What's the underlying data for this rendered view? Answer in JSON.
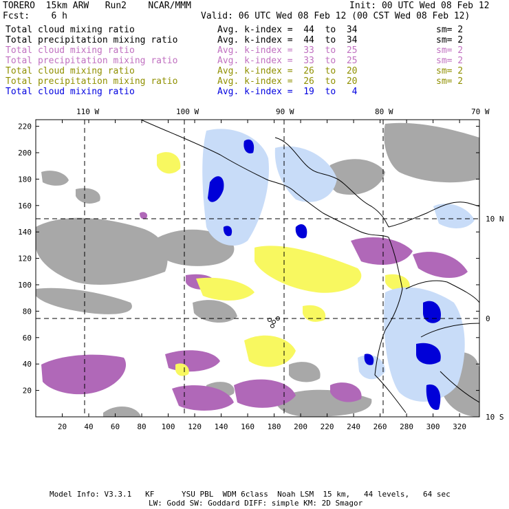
{
  "header": {
    "model": "TORERO  15km ARW   Run2    NCAR/MMM",
    "init": "Init: 00 UTC Wed 08 Feb 12",
    "fcst": "Fcst:    6 h",
    "valid": "Valid: 06 UTC Wed 08 Feb 12 (00 CST Wed 08 Feb 12)"
  },
  "legend": [
    {
      "field": "Total cloud mixing ratio",
      "range": "Avg. k-index =  44  to  34",
      "sm": "sm= 2",
      "color": "#000000"
    },
    {
      "field": "Total precipitation mixing ratio",
      "range": "Avg. k-index =  44  to  34",
      "sm": "sm= 2",
      "color": "#000000"
    },
    {
      "field": "Total cloud mixing ratio",
      "range": "Avg. k-index =  33  to  25",
      "sm": "sm= 2",
      "color": "#c070c0"
    },
    {
      "field": "Total precipitation mixing ratio",
      "range": "Avg. k-index =  33  to  25",
      "sm": "sm= 2",
      "color": "#c070c0"
    },
    {
      "field": "Total cloud mixing ratio",
      "range": "Avg. k-index =  26  to  20",
      "sm": "sm= 2",
      "color": "#909000"
    },
    {
      "field": "Total precipitation mixing ratio",
      "range": "Avg. k-index =  26  to  20",
      "sm": "sm= 2",
      "color": "#909000"
    },
    {
      "field": "Total cloud mixing ratio",
      "range": "Avg. k-index =  19  to   4",
      "sm": "",
      "color": "#0000e0"
    }
  ],
  "map": {
    "lon_labels": [
      "110 W",
      "100 W",
      "90 W",
      "80 W",
      "70 W"
    ],
    "lat_labels": [
      "10 N",
      "0",
      "10 S"
    ],
    "x_ticks": [
      20,
      40,
      60,
      80,
      100,
      120,
      140,
      160,
      180,
      200,
      220,
      240,
      260,
      280,
      300,
      320
    ],
    "y_ticks": [
      20,
      40,
      60,
      80,
      100,
      120,
      140,
      160,
      180,
      200,
      220
    ],
    "x_range": [
      0,
      335
    ],
    "y_range": [
      0,
      225
    ],
    "colors": {
      "gray": "#a8a8a8",
      "magenta": "#b068b8",
      "yellow": "#f8f860",
      "lightblue": "#c8dcf8",
      "blue": "#0000d8",
      "coast": "#000000"
    }
  },
  "footer": {
    "line1": "Model Info: V3.3.1   KF      YSU PBL  WDM 6class  Noah LSM  15 km,   44 levels,   64 sec",
    "line2": "LW: Godd SW: Goddard DIFF: simple KM: 2D Smagor"
  }
}
